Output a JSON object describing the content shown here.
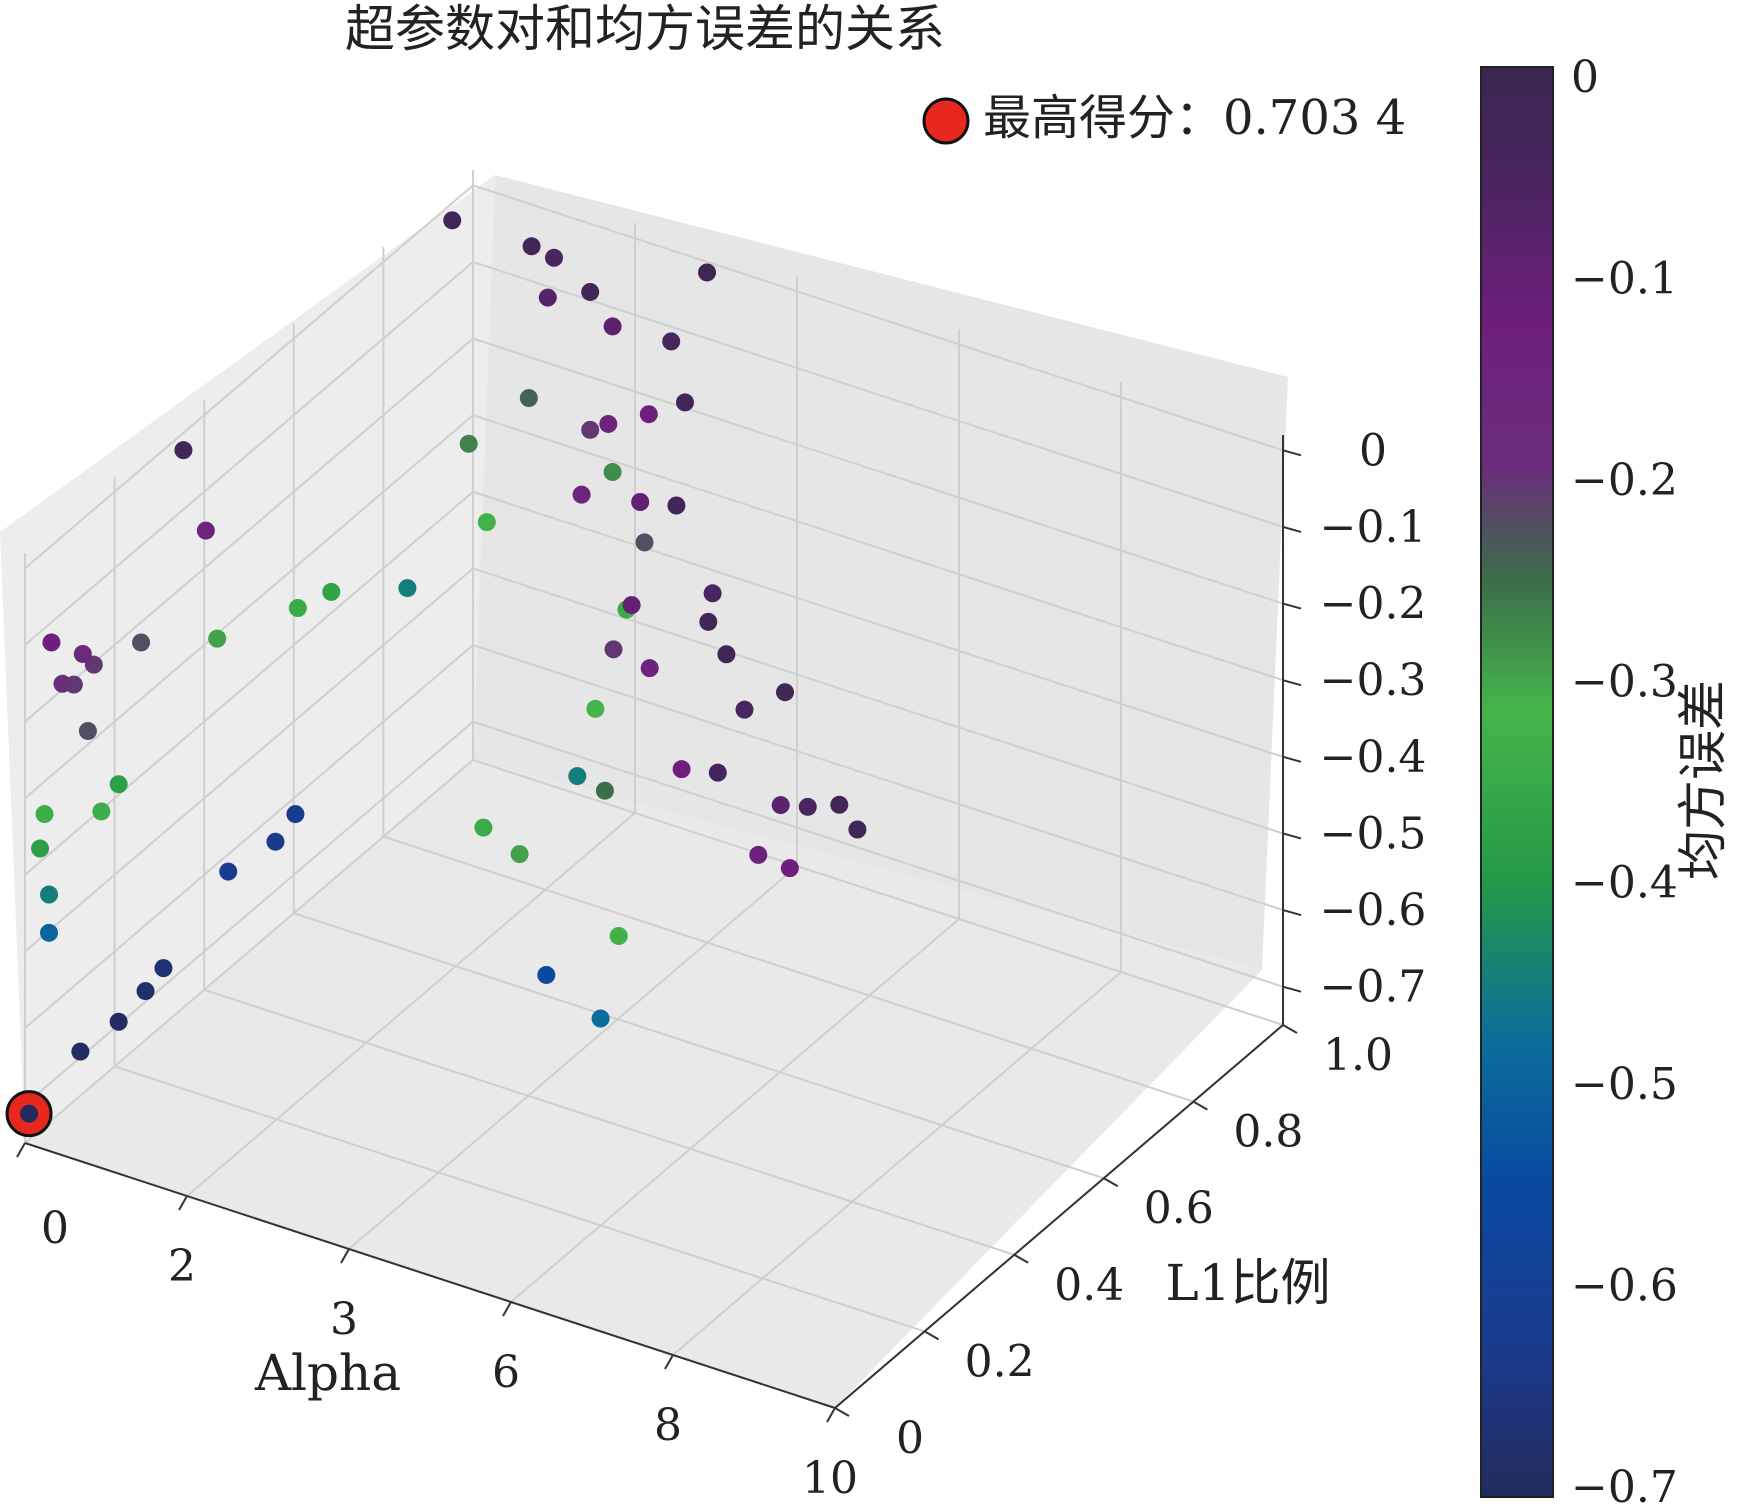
{
  "chart_data": {
    "type": "scatter",
    "projection": "3d",
    "title": "超参数对和均方误差的关系",
    "xlabel": "Alpha",
    "ylabel": "L1比例",
    "zlabel": "",
    "x_ticks": [
      "0",
      "2",
      "3",
      "6",
      "8",
      "10"
    ],
    "y_ticks": [
      "0",
      "0.2",
      "0.4",
      "0.6",
      "0.8",
      "1.0"
    ],
    "z_ticks": [
      "0",
      "−0.1",
      "−0.2",
      "−0.3",
      "−0.4",
      "−0.5",
      "−0.6",
      "−0.7"
    ],
    "xlim": [
      0,
      10
    ],
    "ylim": [
      0,
      1
    ],
    "zlim": [
      -0.75,
      0.02
    ],
    "grid": true,
    "colormap": "viridis-like (dark navy → blue → teal → green → purple)",
    "legend": {
      "label": "最高得分：0.703 4",
      "marker_color": "#e8281e",
      "placement": "top-right"
    },
    "colorbar": {
      "label": "均方误差",
      "ticks": [
        "0",
        "−0.1",
        "−0.2",
        "−0.3",
        "−0.4",
        "−0.5",
        "−0.6",
        "−0.7"
      ],
      "range": [
        -0.7,
        0
      ]
    },
    "best_point": {
      "alpha": 0.05,
      "l1_ratio": 0.0,
      "mse": -0.71
    },
    "points": [
      {
        "alpha": 0.05,
        "l1_ratio": 0.0,
        "mse": -0.71
      },
      {
        "alpha": 0.02,
        "l1_ratio": 0.12,
        "mse": -0.69
      },
      {
        "alpha": 0.05,
        "l1_ratio": 0.2,
        "mse": -0.69
      },
      {
        "alpha": 0.05,
        "l1_ratio": 0.26,
        "mse": -0.68
      },
      {
        "alpha": 0.05,
        "l1_ratio": 0.3,
        "mse": -0.67
      },
      {
        "alpha": 0.02,
        "l1_ratio": 0.45,
        "mse": -0.62
      },
      {
        "alpha": 0.05,
        "l1_ratio": 0.55,
        "mse": -0.63
      },
      {
        "alpha": 0.02,
        "l1_ratio": 0.6,
        "mse": -0.62
      },
      {
        "alpha": 0.02,
        "l1_ratio": 0.85,
        "mse": -0.45
      },
      {
        "alpha": 0.02,
        "l1_ratio": 0.05,
        "mse": -0.5
      },
      {
        "alpha": 0.02,
        "l1_ratio": 0.05,
        "mse": -0.45
      },
      {
        "alpha": 0.02,
        "l1_ratio": 0.03,
        "mse": -0.38
      },
      {
        "alpha": 0.02,
        "l1_ratio": 0.04,
        "mse": -0.34
      },
      {
        "alpha": 0.05,
        "l1_ratio": 0.2,
        "mse": -0.38
      },
      {
        "alpha": 0.02,
        "l1_ratio": 0.15,
        "mse": -0.2
      },
      {
        "alpha": 0.02,
        "l1_ratio": 0.08,
        "mse": -0.19
      },
      {
        "alpha": 0.05,
        "l1_ratio": 0.12,
        "mse": -0.17
      },
      {
        "alpha": 0.05,
        "l1_ratio": 0.05,
        "mse": -0.12
      },
      {
        "alpha": 0.02,
        "l1_ratio": 0.4,
        "mse": -0.15
      },
      {
        "alpha": 0.02,
        "l1_ratio": 0.35,
        "mse": -0.02
      },
      {
        "alpha": 0.02,
        "l1_ratio": 0.95,
        "mse": -0.02
      },
      {
        "alpha": 0.05,
        "l1_ratio": 0.1,
        "mse": -0.2
      },
      {
        "alpha": 0.05,
        "l1_ratio": 0.25,
        "mse": -0.22
      },
      {
        "alpha": 0.05,
        "l1_ratio": 0.42,
        "mse": -0.3
      },
      {
        "alpha": 0.05,
        "l1_ratio": 0.6,
        "mse": -0.35
      },
      {
        "alpha": 0.02,
        "l1_ratio": 0.68,
        "mse": -0.37
      },
      {
        "alpha": 0.5,
        "l1_ratio": 0.05,
        "mse": -0.22
      },
      {
        "alpha": 0.5,
        "l1_ratio": 0.08,
        "mse": -0.34
      },
      {
        "alpha": 0.5,
        "l1_ratio": 0.9,
        "mse": -0.27
      },
      {
        "alpha": 1.0,
        "l1_ratio": 0.95,
        "mse": -0.02
      },
      {
        "alpha": 1.0,
        "l1_ratio": 1.0,
        "mse": -0.06
      },
      {
        "alpha": 1.2,
        "l1_ratio": 0.95,
        "mse": -0.08
      },
      {
        "alpha": 0.8,
        "l1_ratio": 0.98,
        "mse": -0.24
      },
      {
        "alpha": 1.0,
        "l1_ratio": 0.85,
        "mse": -0.33
      },
      {
        "alpha": 2.0,
        "l1_ratio": 0.9,
        "mse": -0.02
      },
      {
        "alpha": 2.0,
        "l1_ratio": 0.95,
        "mse": -0.09
      },
      {
        "alpha": 2.0,
        "l1_ratio": 0.9,
        "mse": -0.2
      },
      {
        "alpha": 2.0,
        "l1_ratio": 0.95,
        "mse": -0.28
      },
      {
        "alpha": 2.5,
        "l1_ratio": 0.85,
        "mse": -0.15
      },
      {
        "alpha": 3.0,
        "l1_ratio": 0.98,
        "mse": 0.0
      },
      {
        "alpha": 3.0,
        "l1_ratio": 0.9,
        "mse": -0.05
      },
      {
        "alpha": 3.0,
        "l1_ratio": 0.85,
        "mse": -0.12
      },
      {
        "alpha": 3.0,
        "l1_ratio": 0.7,
        "mse": -0.15
      },
      {
        "alpha": 3.0,
        "l1_ratio": 0.8,
        "mse": -0.35
      },
      {
        "alpha": 3.5,
        "l1_ratio": 0.75,
        "mse": -0.22
      },
      {
        "alpha": 3.5,
        "l1_ratio": 0.6,
        "mse": -0.45
      },
      {
        "alpha": 4.0,
        "l1_ratio": 0.75,
        "mse": -0.02
      },
      {
        "alpha": 4.0,
        "l1_ratio": 0.65,
        "mse": -0.1
      },
      {
        "alpha": 4.0,
        "l1_ratio": 0.55,
        "mse": -0.32
      },
      {
        "alpha": 4.0,
        "l1_ratio": 0.3,
        "mse": -0.35
      },
      {
        "alpha": 4.5,
        "l1_ratio": 0.5,
        "mse": -0.2
      },
      {
        "alpha": 4.5,
        "l1_ratio": 0.35,
        "mse": -0.55
      },
      {
        "alpha": 5.0,
        "l1_ratio": 0.55,
        "mse": -0.02
      },
      {
        "alpha": 5.0,
        "l1_ratio": 0.45,
        "mse": -0.1
      },
      {
        "alpha": 5.0,
        "l1_ratio": 0.2,
        "mse": -0.3
      },
      {
        "alpha": 5.5,
        "l1_ratio": 0.4,
        "mse": -0.14
      },
      {
        "alpha": 5.5,
        "l1_ratio": 0.3,
        "mse": -0.25
      },
      {
        "alpha": 6.0,
        "l1_ratio": 0.45,
        "mse": -0.05
      },
      {
        "alpha": 6.0,
        "l1_ratio": 0.2,
        "mse": -0.48
      },
      {
        "alpha": 6.5,
        "l1_ratio": 0.35,
        "mse": -0.02
      },
      {
        "alpha": 6.5,
        "l1_ratio": 0.15,
        "mse": -0.33
      },
      {
        "alpha": 7.0,
        "l1_ratio": 0.3,
        "mse": -0.02
      },
      {
        "alpha": 7.0,
        "l1_ratio": 0.2,
        "mse": -0.12
      },
      {
        "alpha": 7.5,
        "l1_ratio": 0.25,
        "mse": -0.05
      },
      {
        "alpha": 8.0,
        "l1_ratio": 0.25,
        "mse": -0.01
      },
      {
        "alpha": 8.0,
        "l1_ratio": 0.1,
        "mse": -0.04
      },
      {
        "alpha": 8.5,
        "l1_ratio": 0.15,
        "mse": -0.09
      },
      {
        "alpha": 8.5,
        "l1_ratio": 0.1,
        "mse": -0.13
      },
      {
        "alpha": 9.0,
        "l1_ratio": 0.12,
        "mse": -0.06
      },
      {
        "alpha": 9.0,
        "l1_ratio": 0.08,
        "mse": -0.12
      },
      {
        "alpha": 9.5,
        "l1_ratio": 0.1,
        "mse": -0.03
      },
      {
        "alpha": 10.0,
        "l1_ratio": 0.05,
        "mse": -0.02
      }
    ]
  }
}
